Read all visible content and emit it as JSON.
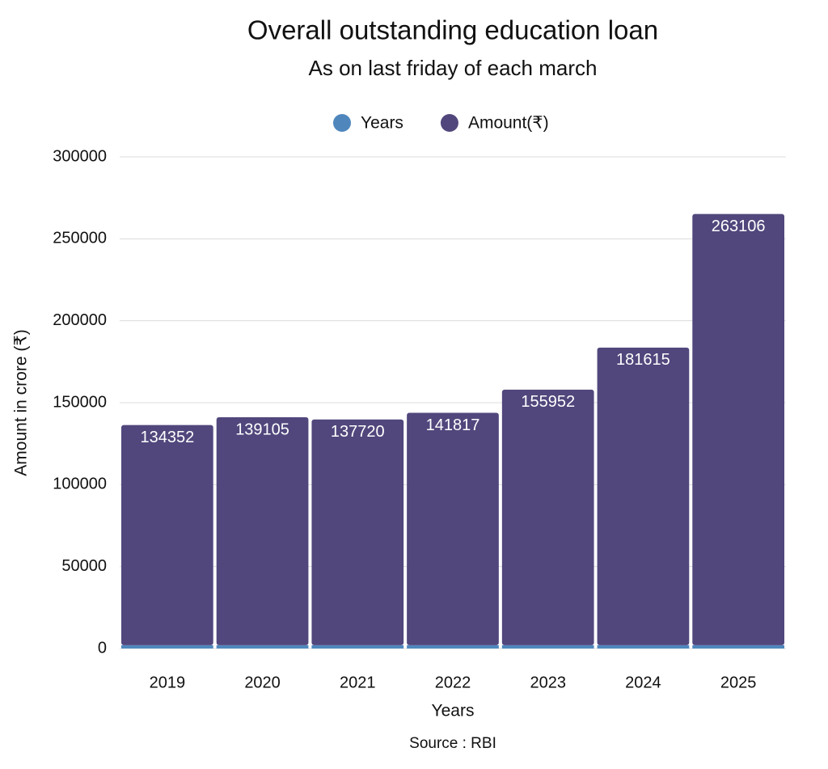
{
  "chart_data": {
    "type": "stacked-bar",
    "title": "Overall outstanding education loan",
    "subtitle": "As on last friday of each march",
    "x_label": "Years",
    "y_label": "Amount in crore (₹)",
    "source": "Source : RBI",
    "categories": [
      "2019",
      "2020",
      "2021",
      "2022",
      "2023",
      "2024",
      "2025"
    ],
    "series": [
      {
        "name": "Years",
        "color": "#4f87bd",
        "values": [
          2019,
          2020,
          2021,
          2022,
          2023,
          2024,
          2025
        ]
      },
      {
        "name": "Amount(₹)",
        "color": "#51477c",
        "values": [
          134352,
          139105,
          137720,
          141817,
          155952,
          181615,
          263106
        ]
      }
    ],
    "ylim": [
      0,
      300000
    ],
    "yticks": [
      0,
      50000,
      100000,
      150000,
      200000,
      250000,
      300000
    ],
    "grid": true,
    "legend": "top",
    "data_labels_series": 1
  }
}
